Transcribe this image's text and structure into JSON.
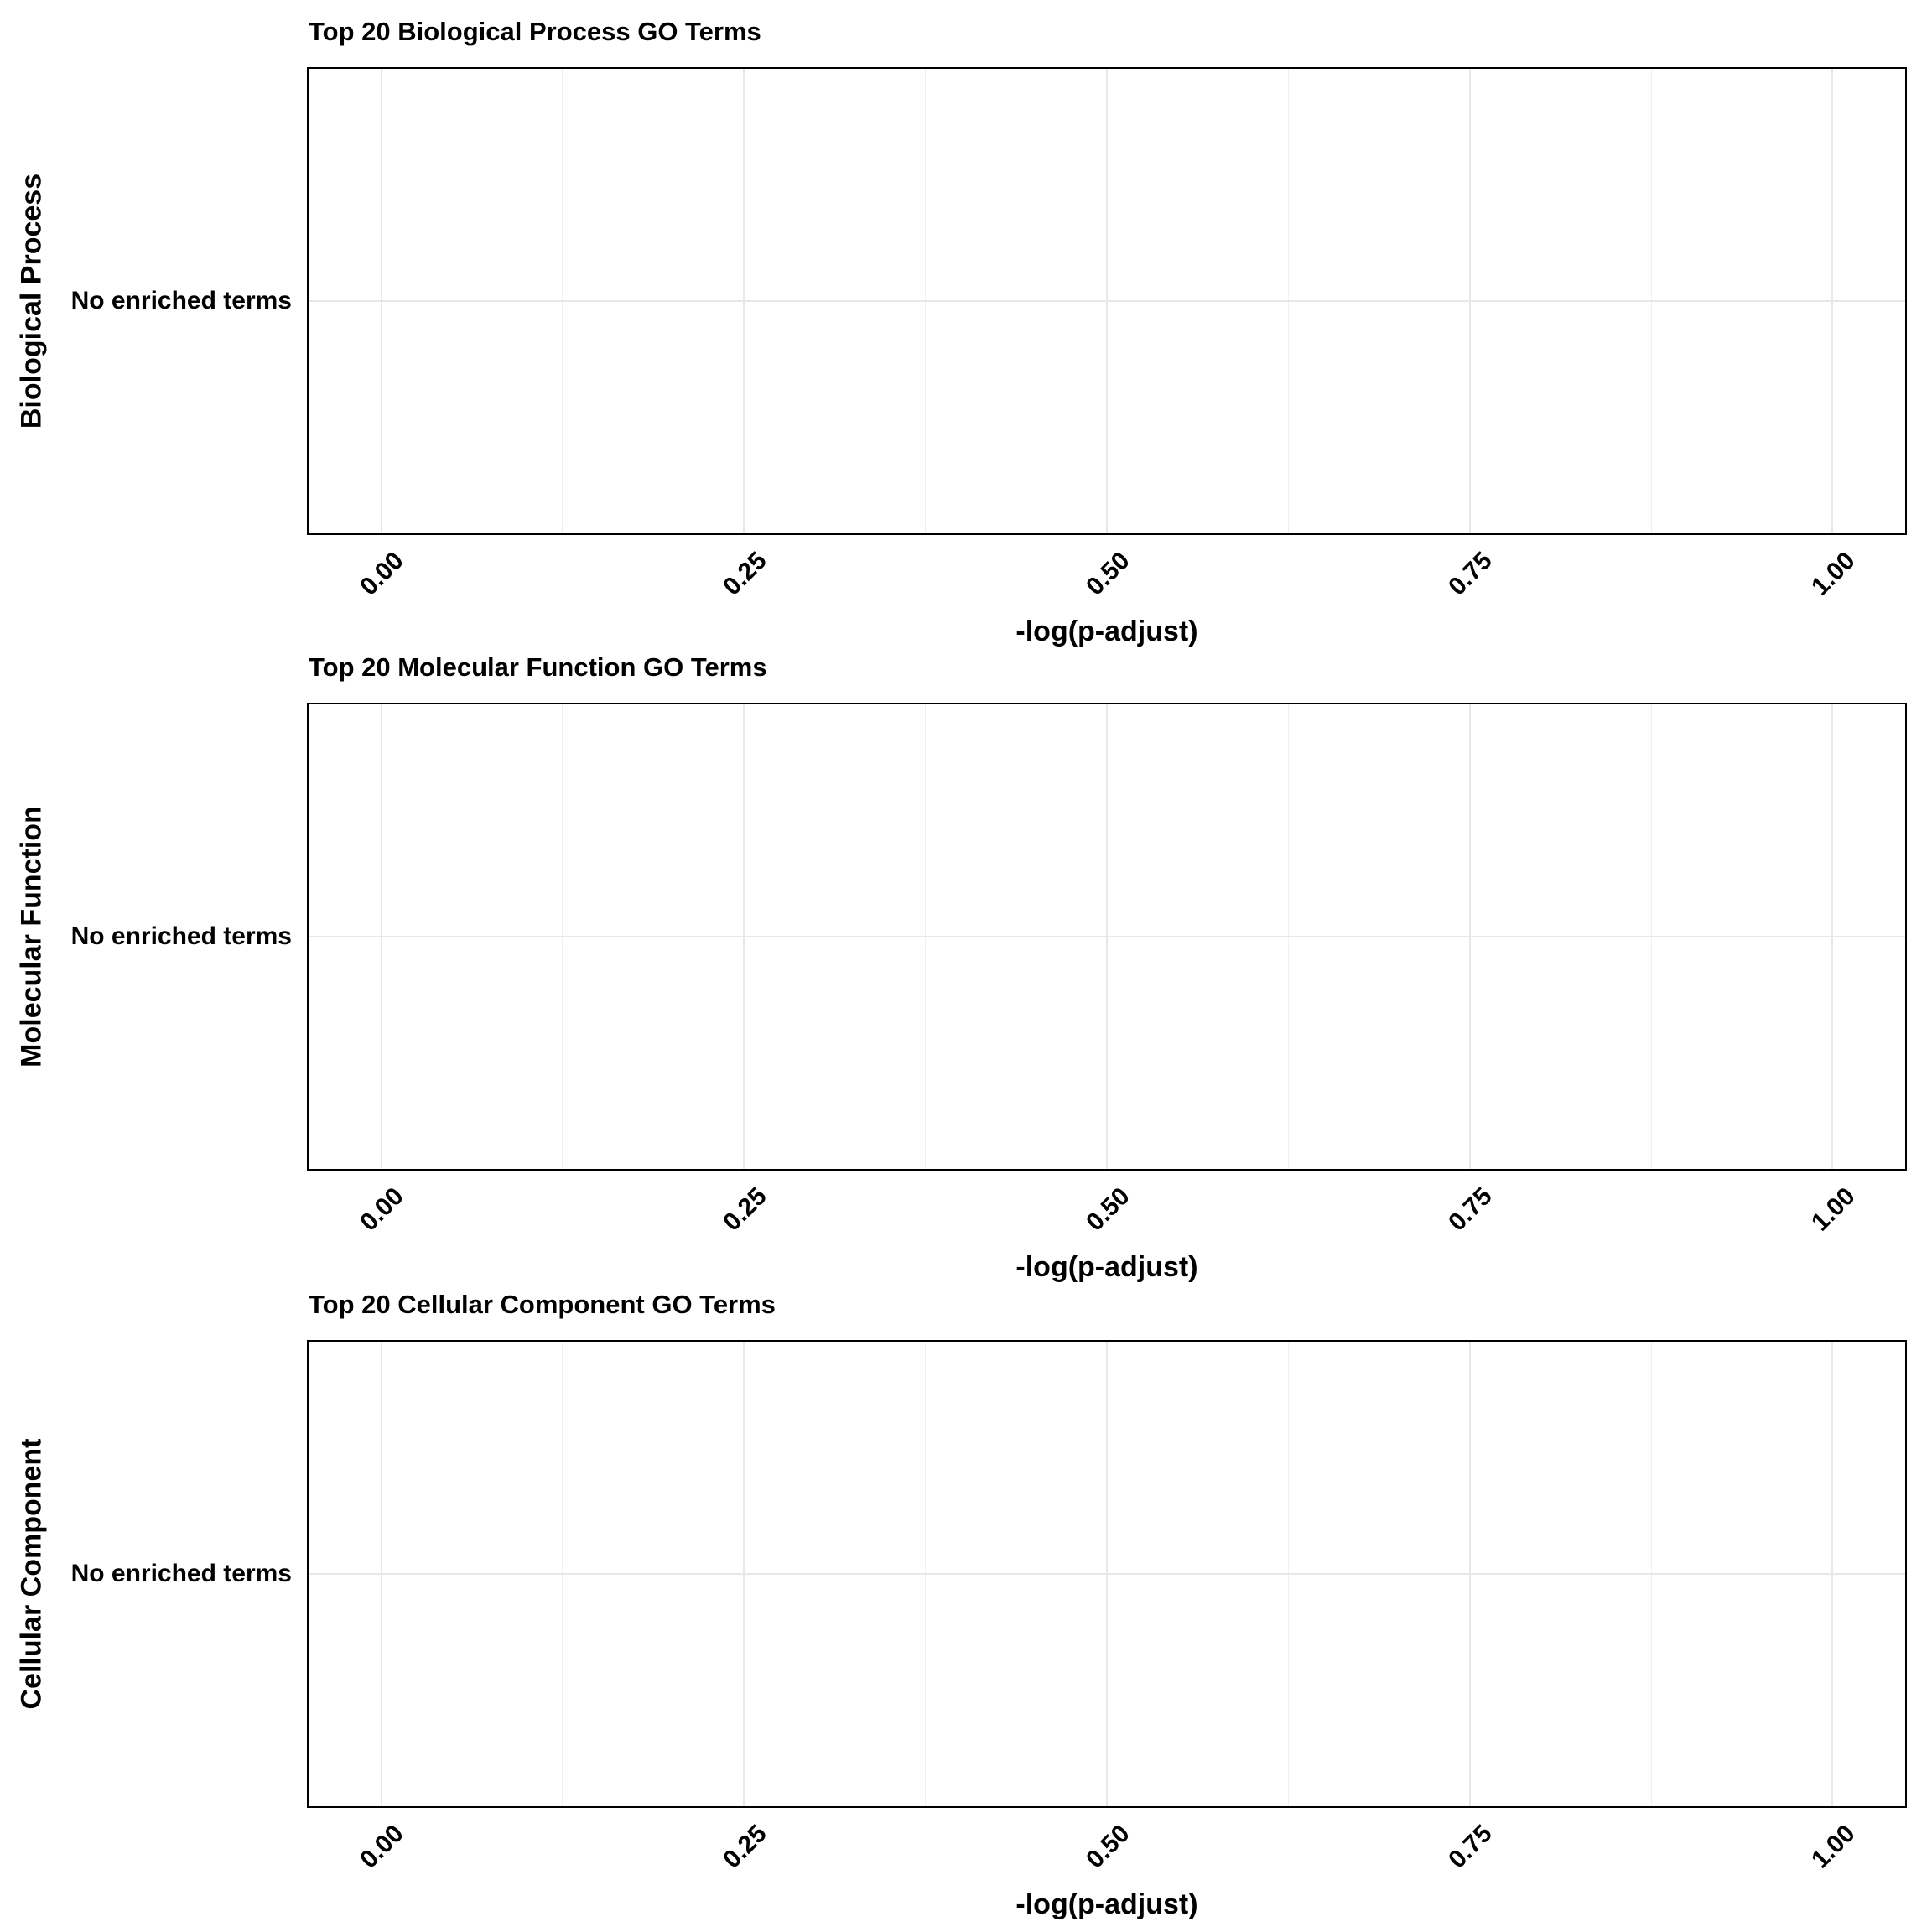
{
  "figure": {
    "background": "#ffffff",
    "text_color": "#000000",
    "panel_border_color": "#000000",
    "grid_major_color": "#e7e7e7",
    "grid_minor_color": "#f0f0f0"
  },
  "chart_data": [
    {
      "type": "bar",
      "orientation": "horizontal",
      "title": "Top 20 Biological Process GO Terms",
      "xlabel": "-log(p-adjust)",
      "ylabel": "Biological Process",
      "categories": [
        "No enriched terms"
      ],
      "values": [],
      "note": "Empty placeholder panel: single y category with no bars drawn",
      "x_ticks": [
        "0.00",
        "0.25",
        "0.50",
        "0.75",
        "1.00"
      ],
      "x_tick_values": [
        0,
        0.25,
        0.5,
        0.75,
        1.0
      ],
      "xlim": [
        -0.05,
        1.05
      ],
      "x_tick_angle_deg": 45,
      "grid": true,
      "legend": "none"
    },
    {
      "type": "bar",
      "orientation": "horizontal",
      "title": "Top 20 Molecular Function GO Terms",
      "xlabel": "-log(p-adjust)",
      "ylabel": "Molecular Function",
      "categories": [
        "No enriched terms"
      ],
      "values": [],
      "note": "Empty placeholder panel: single y category with no bars drawn",
      "x_ticks": [
        "0.00",
        "0.25",
        "0.50",
        "0.75",
        "1.00"
      ],
      "x_tick_values": [
        0,
        0.25,
        0.5,
        0.75,
        1.0
      ],
      "xlim": [
        -0.05,
        1.05
      ],
      "x_tick_angle_deg": 45,
      "grid": true,
      "legend": "none"
    },
    {
      "type": "bar",
      "orientation": "horizontal",
      "title": "Top 20 Cellular Component GO Terms",
      "xlabel": "-log(p-adjust)",
      "ylabel": "Cellular Component",
      "categories": [
        "No enriched terms"
      ],
      "values": [],
      "note": "Empty placeholder panel: single y category with no bars drawn",
      "x_ticks": [
        "0.00",
        "0.25",
        "0.50",
        "0.75",
        "1.00"
      ],
      "x_tick_values": [
        0,
        0.25,
        0.5,
        0.75,
        1.0
      ],
      "xlim": [
        -0.05,
        1.05
      ],
      "x_tick_angle_deg": 45,
      "grid": true,
      "legend": "none"
    }
  ]
}
